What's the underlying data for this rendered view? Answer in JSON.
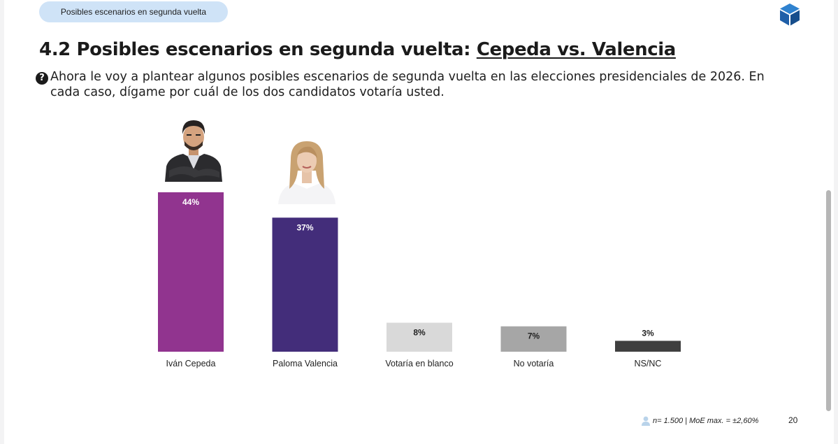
{
  "header": {
    "pill_label": "Posibles escenarios en segunda vuelta",
    "logo_icon": "cube-logo-icon",
    "brand_color": "#1f6fb8"
  },
  "title": {
    "prefix": "4.2 Posibles escenarios en segunda vuelta: ",
    "highlight": "Cepeda vs. Valencia"
  },
  "question": {
    "icon": "question-icon",
    "text": "Ahora le voy a plantear algunos posibles escenarios de segunda vuelta en las elecciones presidenciales de 2026. En cada caso, dígame por cuál de los dos candidatos votaría usted."
  },
  "chart_data": {
    "type": "bar",
    "categories": [
      "Iván Cepeda",
      "Paloma Valencia",
      "Votaría en blanco",
      "No votaría",
      "NS/NC"
    ],
    "values": [
      44,
      37,
      8,
      7,
      3
    ],
    "value_labels": [
      "44%",
      "37%",
      "8%",
      "7%",
      "3%"
    ],
    "colors": [
      "#91348f",
      "#432d7a",
      "#d9d9d9",
      "#a6a6a6",
      "#3f3f3f"
    ],
    "label_colors": [
      "#ffffff",
      "#ffffff",
      "#222222",
      "#222222",
      "#222222"
    ],
    "label_inside": [
      true,
      true,
      true,
      true,
      false
    ],
    "unit": "%",
    "grid": false,
    "legend": "none"
  },
  "portraits": [
    {
      "category": "Iván Cepeda",
      "icon": "candidate-portrait-cepeda"
    },
    {
      "category": "Paloma Valencia",
      "icon": "candidate-portrait-valencia"
    }
  ],
  "footer": {
    "sample_icon": "person-icon",
    "sample_text": "n= 1.500  |  MoE max. = ±2,60%",
    "page_number": "20"
  }
}
